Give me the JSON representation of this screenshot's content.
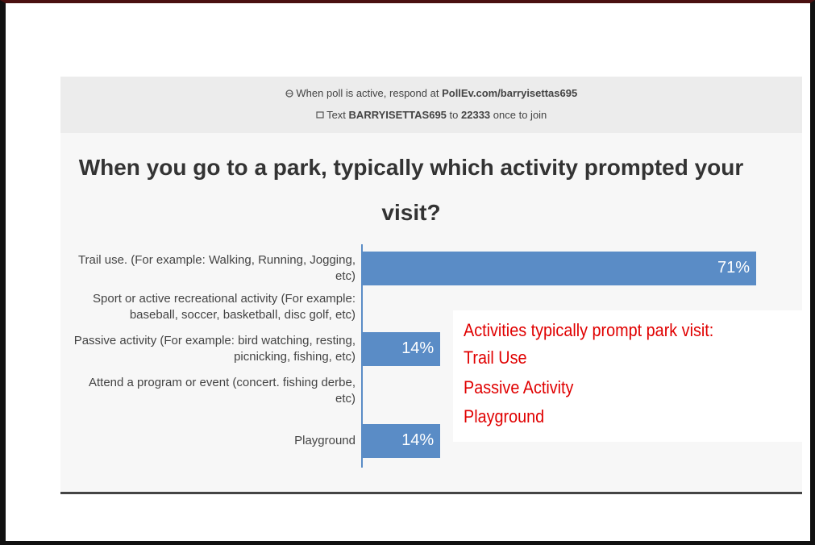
{
  "header": {
    "respond_text": "When poll is active, respond at",
    "respond_url": "PollEv.com/barryisettas695",
    "text_prefix": "Text",
    "text_code": "BARRYISETTAS695",
    "text_to": "to",
    "text_number": "22333",
    "text_suffix": "once to join"
  },
  "chart_data": {
    "type": "bar",
    "orientation": "horizontal",
    "title": "When you go to a park, typically which activity prompted your visit?",
    "categories": [
      "Trail use. (For example: Walking, Running, Jogging, etc)",
      "Sport or active recreational activity (For example: baseball, soccer, basketball, disc golf, etc)",
      "Passive activity (For example: bird watching, resting, picnicking, fishing, etc)",
      "Attend a program or event (concert. fishing derbe, etc)",
      "Playground"
    ],
    "values": [
      71,
      0,
      14,
      0,
      14
    ],
    "value_labels": [
      "71%",
      null,
      "14%",
      null,
      "14%"
    ],
    "color": "#5a8cc6"
  },
  "annotation": {
    "lines": [
      "Activities typically prompt park visit:",
      "Trail Use",
      "Passive Activity",
      "Playground"
    ]
  }
}
